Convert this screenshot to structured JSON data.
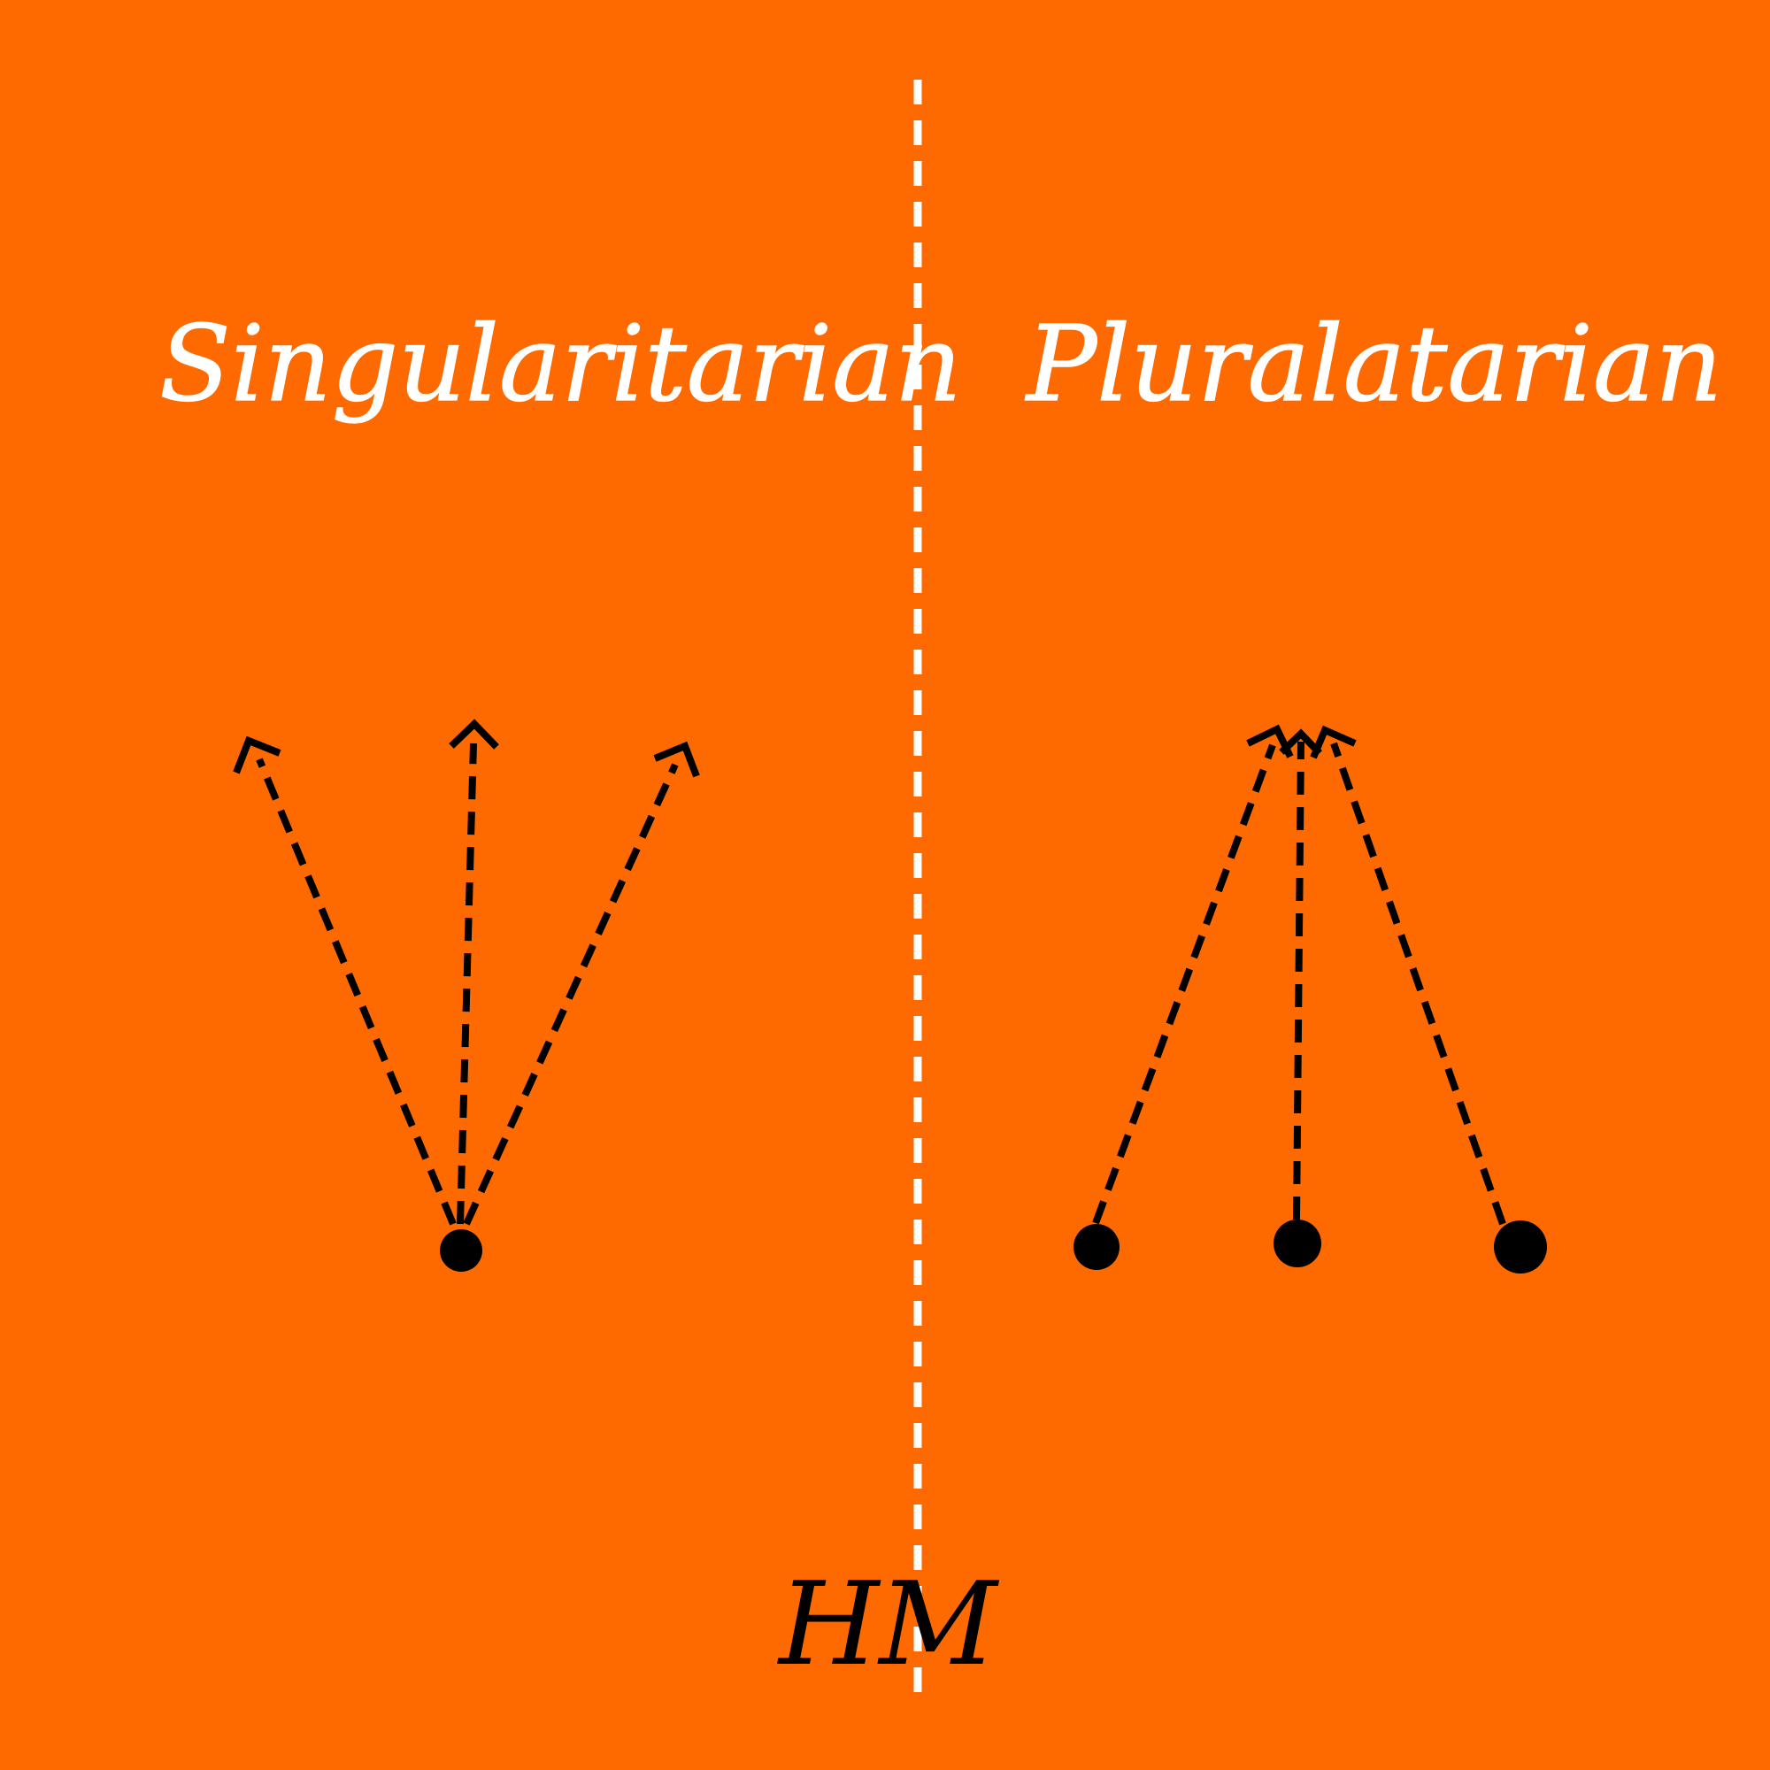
{
  "background_color": "#FF6A00",
  "headings": {
    "left": "Singularitarian",
    "right": "Pluralatarian"
  },
  "signature": "HM",
  "colors": {
    "divider": "#FFFFFF",
    "arrows": "#000000",
    "heading_text": "#FFFFFF",
    "signature_text": "#000000"
  },
  "left_diagram": {
    "origin_points": 1,
    "arrows": 3,
    "description_shape": "fan"
  },
  "right_diagram": {
    "origin_points": 3,
    "arrows": 3,
    "description_shape": "converge"
  }
}
